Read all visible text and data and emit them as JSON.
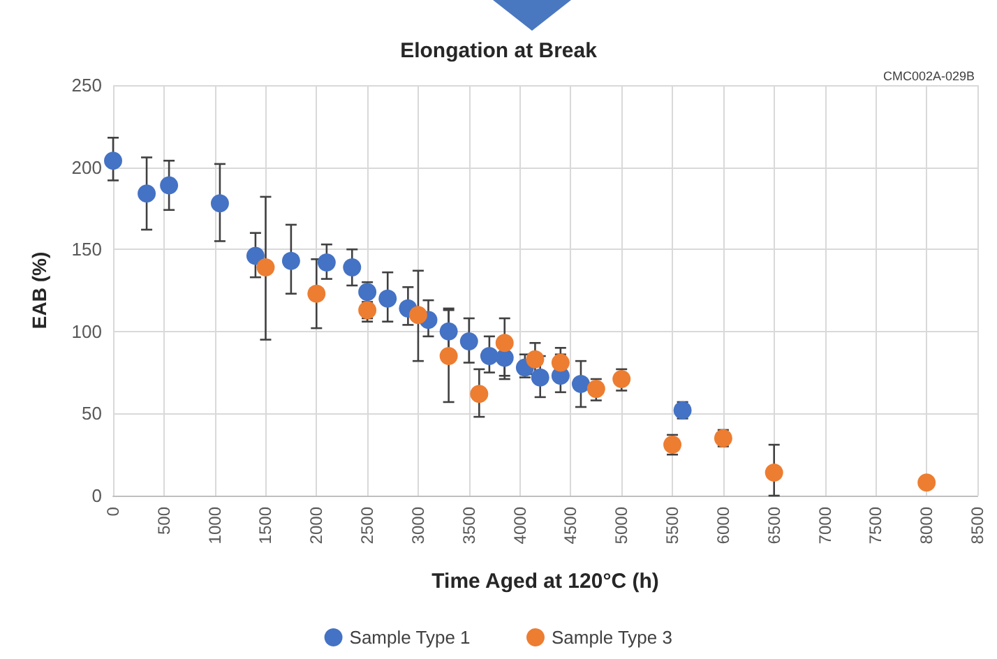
{
  "chart_data": {
    "type": "scatter",
    "title": "Elongation at Break",
    "xlabel": "Time Aged at 120°C (h)",
    "ylabel": "EAB (%)",
    "annotations": [
      "CMC002A-029B"
    ],
    "series": [
      {
        "name": "Sample Type 1",
        "color": "#4472c4",
        "x": [
          0,
          330,
          550,
          1050,
          1400,
          1750,
          2100,
          2350,
          2500,
          2700,
          2900,
          3100,
          3300,
          3500,
          3700,
          3850,
          4050,
          4200,
          4400,
          4600,
          5600
        ],
        "values": [
          204,
          184,
          189,
          178,
          146,
          143,
          142,
          139,
          124,
          120,
          114,
          107,
          100,
          94,
          85,
          84,
          78,
          72,
          73,
          68,
          52
        ],
        "errors": [
          [
            192,
            218
          ],
          [
            162,
            206
          ],
          [
            174,
            204
          ],
          [
            155,
            202
          ],
          [
            133,
            160
          ],
          [
            123,
            165
          ],
          [
            132,
            153
          ],
          [
            128,
            150
          ],
          [
            106,
            130
          ],
          [
            106,
            136
          ],
          [
            104,
            127
          ],
          [
            97,
            119
          ],
          [
            88,
            113
          ],
          [
            81,
            108
          ],
          [
            75,
            97
          ],
          [
            73,
            84
          ],
          [
            72,
            86
          ],
          [
            60,
            85
          ],
          [
            63,
            86
          ],
          [
            54,
            82
          ],
          [
            47,
            57
          ]
        ]
      },
      {
        "name": "Sample Type 3",
        "color": "#ed7d31",
        "x": [
          1500,
          2000,
          2500,
          3000,
          3300,
          3600,
          3850,
          4150,
          4400,
          4750,
          5000,
          5500,
          6000,
          6500,
          8000
        ],
        "values": [
          139,
          123,
          113,
          110,
          85,
          62,
          93,
          83,
          81,
          65,
          71,
          31,
          35,
          14,
          8
        ],
        "errors": [
          [
            95,
            182
          ],
          [
            102,
            144
          ],
          [
            108,
            118
          ],
          [
            82,
            137
          ],
          [
            57,
            114
          ],
          [
            48,
            77
          ],
          [
            71,
            108
          ],
          [
            74,
            93
          ],
          [
            73,
            90
          ],
          [
            58,
            71
          ],
          [
            64,
            77
          ],
          [
            25,
            37
          ],
          [
            30,
            40
          ],
          [
            0,
            31
          ],
          null
        ]
      }
    ],
    "xlim": [
      0,
      8500
    ],
    "xticks": [
      0,
      500,
      1000,
      1500,
      2000,
      2500,
      3000,
      3500,
      4000,
      4500,
      5000,
      5500,
      6000,
      6500,
      7000,
      7500,
      8000,
      8500
    ],
    "ylim": [
      0,
      250
    ],
    "yticks": [
      0,
      50,
      100,
      150,
      200,
      250
    ],
    "grid": true,
    "legend": "bottom",
    "marker": "circle"
  }
}
